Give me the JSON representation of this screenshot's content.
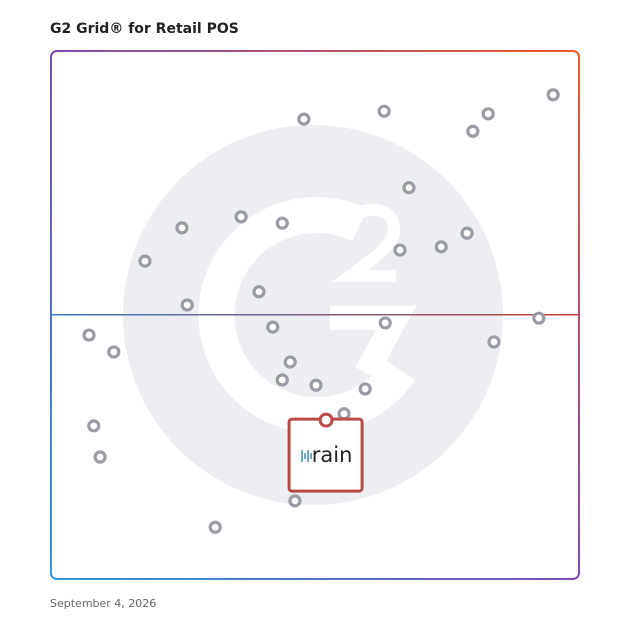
{
  "chart_data": {
    "type": "scatter",
    "title": "G2 Grid® for Retail POS",
    "footnote": "September 4, 2026",
    "xlim": [
      0,
      100
    ],
    "ylim": [
      0,
      100
    ],
    "color": "#9a9ca5",
    "x": [
      47.9,
      63.1,
      82.8,
      79.9,
      95.1,
      67.8,
      36.0,
      43.8,
      24.8,
      17.8,
      66.1,
      73.9,
      78.8,
      39.4,
      25.8,
      42.0,
      63.3,
      92.4,
      83.9,
      7.2,
      11.9,
      45.3,
      43.8,
      50.2,
      59.5,
      55.5,
      8.1,
      9.3,
      46.2,
      31.1
    ],
    "values": [
      87.1,
      88.6,
      88.1,
      84.8,
      91.7,
      74.1,
      68.6,
      67.4,
      66.5,
      60.2,
      62.3,
      62.9,
      65.5,
      54.4,
      51.9,
      47.7,
      48.5,
      49.4,
      44.9,
      46.2,
      43.0,
      41.1,
      37.7,
      36.7,
      36.0,
      31.3,
      29.0,
      23.1,
      14.8,
      9.8
    ],
    "highlight": {
      "name": "rain",
      "x": 52.1,
      "y": 30.1,
      "color": "#b84a4a"
    }
  }
}
